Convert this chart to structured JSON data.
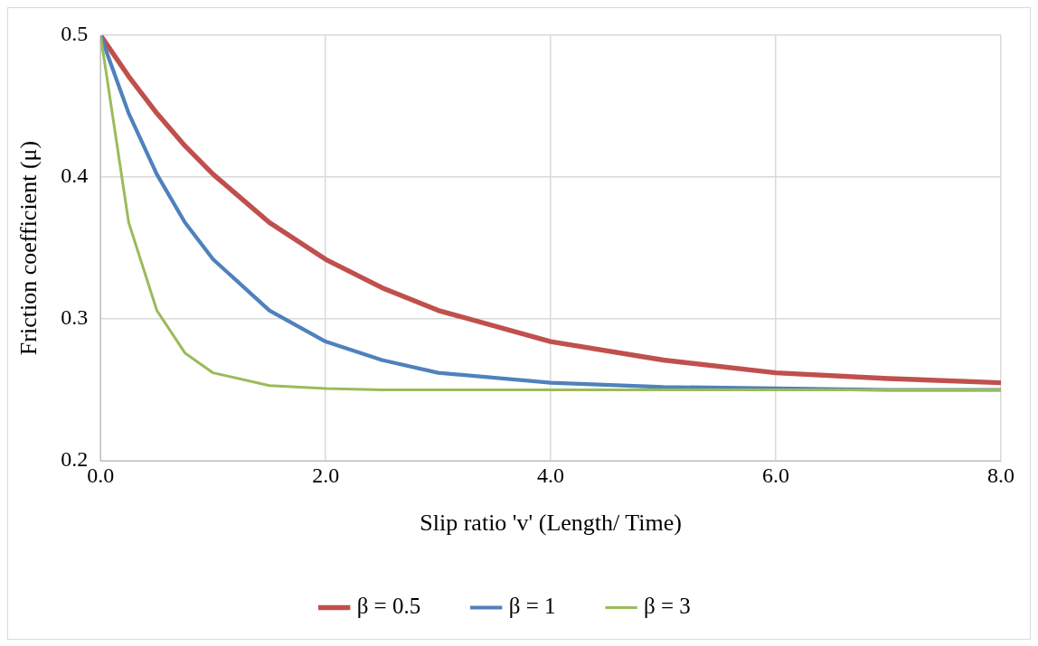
{
  "chart_data": {
    "type": "line",
    "xlabel": "Slip ratio 'v' (Length/ Time)",
    "ylabel": "Friction coefficient (μ)",
    "x": [
      0,
      0.25,
      0.5,
      0.75,
      1,
      1.5,
      2,
      2.5,
      3,
      4,
      5,
      6,
      7,
      8
    ],
    "series": [
      {
        "name": "β = 0.5",
        "color": "#c0504d",
        "values": [
          0.5,
          0.471,
          0.445,
          0.422,
          0.402,
          0.368,
          0.342,
          0.322,
          0.306,
          0.284,
          0.271,
          0.262,
          0.258,
          0.255
        ]
      },
      {
        "name": "β = 1",
        "color": "#4f81bd",
        "values": [
          0.5,
          0.445,
          0.402,
          0.368,
          0.342,
          0.306,
          0.284,
          0.271,
          0.262,
          0.255,
          0.252,
          0.251,
          0.25,
          0.25
        ]
      },
      {
        "name": "β = 3",
        "color": "#9bbb59",
        "values": [
          0.5,
          0.368,
          0.306,
          0.276,
          0.262,
          0.253,
          0.251,
          0.25,
          0.25,
          0.25,
          0.25,
          0.25,
          0.25,
          0.25
        ]
      }
    ],
    "xlim": [
      0,
      8
    ],
    "xticks": [
      {
        "value": 0,
        "label": "0.0"
      },
      {
        "value": 2,
        "label": "2.0"
      },
      {
        "value": 4,
        "label": "4.0"
      },
      {
        "value": 6,
        "label": "6.0"
      },
      {
        "value": 8,
        "label": "8.0"
      }
    ],
    "ylim": [
      0.2,
      0.5
    ],
    "yticks": [
      0.2,
      0.3,
      0.4,
      0.5
    ],
    "grid": true,
    "legend": "bottom",
    "marker": "none",
    "line_style": "solid"
  }
}
